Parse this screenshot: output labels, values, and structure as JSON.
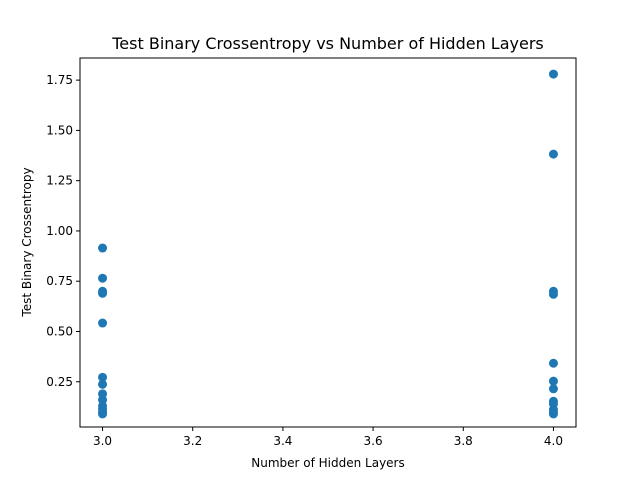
{
  "chart_data": {
    "type": "scatter",
    "title": "Test Binary Crossentropy vs Number of Hidden Layers",
    "xlabel": "Number of Hidden Layers",
    "ylabel": "Test Binary Crossentropy",
    "xlim": [
      2.95,
      4.05
    ],
    "ylim": [
      0.025,
      1.86
    ],
    "xticks": [
      3.0,
      3.2,
      3.4,
      3.6,
      3.8,
      4.0
    ],
    "xtick_labels": [
      "3.0",
      "3.2",
      "3.4",
      "3.6",
      "3.8",
      "4.0"
    ],
    "yticks": [
      0.25,
      0.5,
      0.75,
      1.0,
      1.25,
      1.5,
      1.75
    ],
    "ytick_labels": [
      "0.25",
      "0.50",
      "0.75",
      "1.00",
      "1.25",
      "1.50",
      "1.75"
    ],
    "grid": false,
    "marker_color": "#1f77b4",
    "points": [
      {
        "x": 3,
        "y": 0.915
      },
      {
        "x": 3,
        "y": 0.765
      },
      {
        "x": 3,
        "y": 0.7
      },
      {
        "x": 3,
        "y": 0.69
      },
      {
        "x": 3,
        "y": 0.542
      },
      {
        "x": 3,
        "y": 0.272
      },
      {
        "x": 3,
        "y": 0.237
      },
      {
        "x": 3,
        "y": 0.19
      },
      {
        "x": 3,
        "y": 0.16
      },
      {
        "x": 3,
        "y": 0.13
      },
      {
        "x": 3,
        "y": 0.115
      },
      {
        "x": 3,
        "y": 0.1
      },
      {
        "x": 3,
        "y": 0.09
      },
      {
        "x": 4,
        "y": 1.78
      },
      {
        "x": 4,
        "y": 1.382
      },
      {
        "x": 4,
        "y": 0.7
      },
      {
        "x": 4,
        "y": 0.685
      },
      {
        "x": 4,
        "y": 0.342
      },
      {
        "x": 4,
        "y": 0.253
      },
      {
        "x": 4,
        "y": 0.215
      },
      {
        "x": 4,
        "y": 0.153
      },
      {
        "x": 4,
        "y": 0.14
      },
      {
        "x": 4,
        "y": 0.112
      },
      {
        "x": 4,
        "y": 0.1
      },
      {
        "x": 4,
        "y": 0.09
      }
    ]
  }
}
